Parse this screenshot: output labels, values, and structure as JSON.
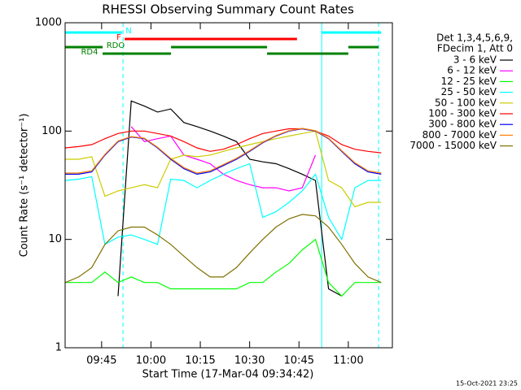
{
  "chart_data": {
    "type": "line",
    "title": "RHESSI Observing Summary Count Rates",
    "xlabel": "Start Time (17-Mar-04 09:34:42)",
    "ylabel": "Count Rate (s⁻¹ detector⁻¹)",
    "footer": "15-Oct-2021 23:25",
    "legend_header": [
      "Det 1,3,4,5,6,9,",
      "FDecim 1, Att 0"
    ],
    "log_y": true,
    "xlim": [
      573.9,
      673.4
    ],
    "ylim": [
      1,
      1000
    ],
    "xticks": [
      {
        "value": 585,
        "label": "09:45"
      },
      {
        "value": 600,
        "label": "10:00"
      },
      {
        "value": 615,
        "label": "10:15"
      },
      {
        "value": 630,
        "label": "10:30"
      },
      {
        "value": 645,
        "label": "10:45"
      },
      {
        "value": 660,
        "label": "11:00"
      }
    ],
    "yticks": [
      1,
      10,
      100,
      1000
    ],
    "x": [
      574,
      578,
      582,
      586,
      590,
      594,
      598,
      602,
      606,
      610,
      614,
      618,
      622,
      626,
      630,
      634,
      638,
      642,
      646,
      650,
      654,
      658,
      662,
      666,
      670
    ],
    "series": [
      {
        "name": "3 - 6 keV",
        "color": "#000000",
        "values": [
          null,
          null,
          null,
          null,
          3,
          190,
          170,
          150,
          160,
          120,
          110,
          100,
          90,
          80,
          55,
          52,
          50,
          45,
          40,
          35,
          3.5,
          3,
          null,
          null,
          null
        ]
      },
      {
        "name": "6 - 12 keV",
        "color": "#ff00ff",
        "values": [
          null,
          null,
          null,
          null,
          null,
          110,
          80,
          85,
          90,
          60,
          55,
          50,
          40,
          35,
          32,
          30,
          30,
          28,
          30,
          60,
          null,
          null,
          null,
          null,
          null
        ]
      },
      {
        "name": "12 - 25 keV",
        "color": "#00ff00",
        "values": [
          4,
          4,
          4,
          5,
          4,
          4.5,
          4,
          4,
          3.5,
          3.5,
          3.5,
          3.5,
          3.5,
          3.5,
          4,
          4,
          5,
          6,
          8,
          10,
          4,
          3,
          4,
          4,
          4
        ]
      },
      {
        "name": "25 - 50 keV",
        "color": "#00ffff",
        "values": [
          35,
          36,
          38,
          9,
          10.5,
          11,
          10,
          9,
          36,
          35,
          30,
          35,
          40,
          45,
          50,
          16,
          18,
          22,
          28,
          40,
          16,
          10,
          30,
          35,
          35
        ]
      },
      {
        "name": "50 - 100 keV",
        "color": "#cccc00",
        "values": [
          55,
          55,
          58,
          25,
          28,
          30,
          32,
          30,
          55,
          60,
          58,
          60,
          65,
          70,
          75,
          80,
          85,
          90,
          95,
          100,
          35,
          30,
          20,
          22,
          22
        ]
      },
      {
        "name": "100 - 300 keV",
        "color": "#ff0000",
        "values": [
          70,
          72,
          75,
          85,
          95,
          100,
          100,
          95,
          90,
          80,
          70,
          65,
          68,
          75,
          85,
          95,
          100,
          105,
          105,
          100,
          90,
          75,
          68,
          65,
          63
        ]
      },
      {
        "name": "300 - 800 keV",
        "color": "#0000ff",
        "values": [
          40,
          40,
          42,
          60,
          80,
          88,
          85,
          70,
          55,
          45,
          40,
          42,
          48,
          55,
          65,
          78,
          90,
          100,
          105,
          100,
          85,
          65,
          50,
          42,
          40
        ]
      },
      {
        "name": "800 - 7000 keV",
        "color": "#ff8000",
        "values": [
          41,
          41,
          43,
          61,
          81,
          89,
          86,
          71,
          56,
          46,
          41,
          43,
          49,
          56,
          66,
          79,
          91,
          101,
          106,
          101,
          86,
          66,
          51,
          43,
          41
        ]
      },
      {
        "name": "7000 - 15000 keV",
        "color": "#807000",
        "values": [
          4,
          4.5,
          5.5,
          9,
          12,
          13,
          13,
          11,
          9,
          7,
          5.5,
          4.5,
          4.5,
          5.5,
          7.5,
          10,
          13,
          15.5,
          17,
          16.5,
          13,
          9,
          6,
          4.5,
          4
        ]
      }
    ],
    "flags": [
      {
        "label": "N",
        "color": "#00ffff",
        "intervals": [
          [
            573.9,
            591.2
          ],
          [
            651.9,
            670
          ]
        ]
      },
      {
        "label": "F",
        "color": "#ff0000",
        "intervals": [
          [
            592,
            644.4
          ]
        ]
      },
      {
        "label": "RDO",
        "color": "#008000",
        "intervals": [
          [
            573.9,
            585.3
          ],
          [
            606.1,
            635.3
          ],
          [
            660,
            669.2
          ]
        ]
      },
      {
        "label": "RD4",
        "color": "#008000",
        "intervals": [
          [
            585.3,
            606.1
          ],
          [
            635.3,
            660
          ]
        ]
      }
    ],
    "boundaries": [
      {
        "x": 573.9,
        "dashed": false
      },
      {
        "x": 591.5,
        "dashed": true
      },
      {
        "x": 651.9,
        "dashed": false
      },
      {
        "x": 669.2,
        "dashed": true
      }
    ]
  }
}
